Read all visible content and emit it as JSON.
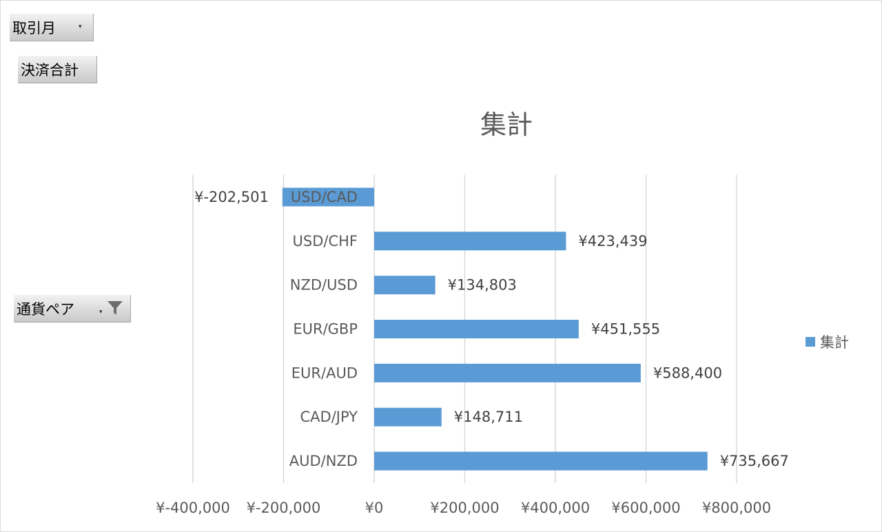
{
  "pivot_fields": {
    "filter_field": {
      "label": "取引月",
      "icon": "dropdown-arrow-icon"
    },
    "value_field": {
      "label": "決済合計"
    },
    "axis_field": {
      "label": "通貨ペア",
      "icon": "filter-funnel-icon"
    }
  },
  "colors": {
    "bar": "#5b9bd5",
    "grid": "#d9d9d9",
    "text": "#595959"
  },
  "chart_data": {
    "type": "bar",
    "orientation": "horizontal",
    "title": "集計",
    "categories": [
      "USD/CAD",
      "USD/CHF",
      "NZD/USD",
      "EUR/GBP",
      "EUR/AUD",
      "CAD/JPY",
      "AUD/NZD"
    ],
    "series": [
      {
        "name": "集計",
        "values": [
          -202501,
          423439,
          134803,
          451555,
          588400,
          148711,
          735667
        ],
        "data_labels": [
          "¥-202,501",
          "¥423,439",
          "¥134,803",
          "¥451,555",
          "¥588,400",
          "¥148,711",
          "¥735,667"
        ]
      }
    ],
    "x_ticks": [
      -400000,
      -200000,
      0,
      200000,
      400000,
      600000,
      800000
    ],
    "x_tick_labels": [
      "¥-400,000",
      "¥-200,000",
      "¥0",
      "¥200,000",
      "¥400,000",
      "¥600,000",
      "¥800,000"
    ],
    "xlim": [
      -400000,
      800000
    ],
    "grid": "vertical",
    "legend": "right"
  }
}
